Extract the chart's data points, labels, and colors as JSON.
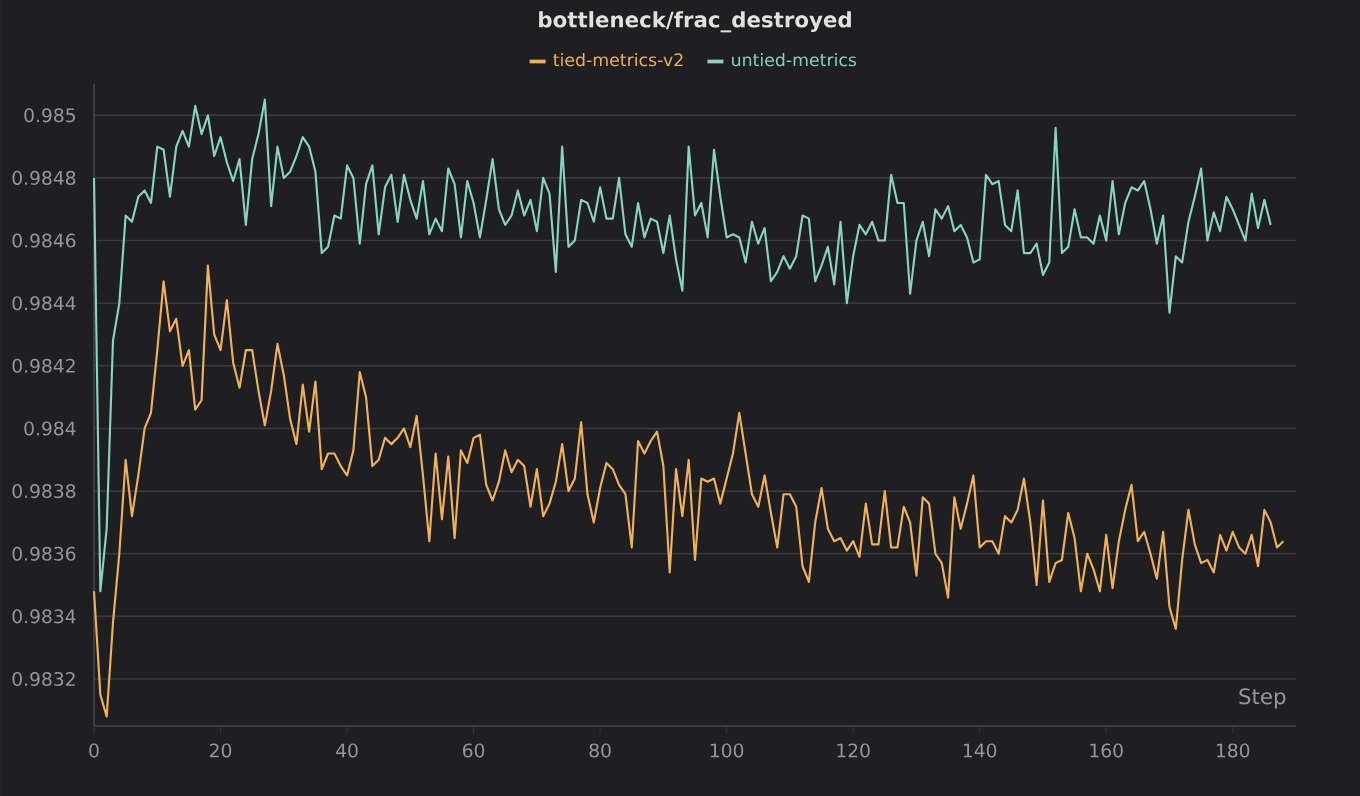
{
  "chart_data": {
    "type": "line",
    "title": "bottleneck/frac_destroyed",
    "xlabel": "Step",
    "xlim": [
      0,
      190
    ],
    "ylim": [
      0.98305,
      0.9851
    ],
    "xticks": [
      0,
      20,
      40,
      60,
      80,
      100,
      120,
      140,
      160,
      180
    ],
    "yticks": [
      0.9832,
      0.9834,
      0.9836,
      0.9838,
      0.984,
      0.9842,
      0.9844,
      0.9846,
      0.9848,
      0.985
    ],
    "grid": "y",
    "legend": "top",
    "series": [
      {
        "name": "tied-metrics-v2",
        "color": "#f0b15c",
        "x": [
          0,
          1,
          2,
          3,
          4,
          5,
          6,
          7,
          8,
          9,
          10,
          11,
          12,
          13,
          14,
          15,
          16,
          17,
          18,
          19,
          20,
          21,
          22,
          23,
          24,
          25,
          26,
          27,
          28,
          29,
          30,
          31,
          32,
          33,
          34,
          35,
          36,
          37,
          38,
          39,
          40,
          41,
          42,
          43,
          44,
          45,
          46,
          47,
          48,
          49,
          50,
          51,
          52,
          53,
          54,
          55,
          56,
          57,
          58,
          59,
          60,
          61,
          62,
          63,
          64,
          65,
          66,
          67,
          68,
          69,
          70,
          71,
          72,
          73,
          74,
          75,
          76,
          77,
          78,
          79,
          80,
          81,
          82,
          83,
          84,
          85,
          86,
          87,
          88,
          89,
          90,
          91,
          92,
          93,
          94,
          95,
          96,
          97,
          98,
          99,
          100,
          101,
          102,
          103,
          104,
          105,
          106,
          107,
          108,
          109,
          110,
          111,
          112,
          113,
          114,
          115,
          116,
          117,
          118,
          119,
          120,
          121,
          122,
          123,
          124,
          125,
          126,
          127,
          128,
          129,
          130,
          131,
          132,
          133,
          134,
          135,
          136,
          137,
          138,
          139,
          140,
          141,
          142,
          143,
          144,
          145,
          146,
          147,
          148,
          149,
          150,
          151,
          152,
          153,
          154,
          155,
          156,
          157,
          158,
          159,
          160,
          161,
          162,
          163,
          164,
          165,
          166,
          167,
          168,
          169,
          170,
          171,
          172,
          173,
          174,
          175,
          176,
          177,
          178,
          179,
          180,
          181,
          182,
          183,
          184,
          185,
          186,
          187,
          188
        ],
        "values": [
          0.98348,
          0.98315,
          0.98308,
          0.98338,
          0.9836,
          0.9839,
          0.98372,
          0.98385,
          0.984,
          0.98405,
          0.98425,
          0.98447,
          0.98431,
          0.98435,
          0.9842,
          0.98425,
          0.98406,
          0.98409,
          0.98452,
          0.9843,
          0.98425,
          0.98441,
          0.98421,
          0.98413,
          0.98425,
          0.98425,
          0.98412,
          0.98401,
          0.98412,
          0.98427,
          0.98417,
          0.98403,
          0.98395,
          0.98414,
          0.98399,
          0.98415,
          0.98387,
          0.98392,
          0.98392,
          0.98388,
          0.98385,
          0.98393,
          0.98418,
          0.9841,
          0.98388,
          0.9839,
          0.98397,
          0.98395,
          0.98397,
          0.984,
          0.98394,
          0.98404,
          0.98385,
          0.98364,
          0.98392,
          0.98371,
          0.98391,
          0.98365,
          0.98393,
          0.98389,
          0.98397,
          0.98398,
          0.98382,
          0.98377,
          0.98383,
          0.98393,
          0.98386,
          0.9839,
          0.98388,
          0.98375,
          0.98387,
          0.98372,
          0.98376,
          0.98383,
          0.98395,
          0.9838,
          0.98384,
          0.98402,
          0.98379,
          0.9837,
          0.98381,
          0.98389,
          0.98387,
          0.98382,
          0.98379,
          0.98362,
          0.98396,
          0.98392,
          0.98396,
          0.98399,
          0.98388,
          0.98354,
          0.98387,
          0.98372,
          0.9839,
          0.98358,
          0.98384,
          0.98383,
          0.98384,
          0.98376,
          0.98384,
          0.98392,
          0.98405,
          0.98392,
          0.98379,
          0.98375,
          0.98385,
          0.98373,
          0.98362,
          0.98379,
          0.98379,
          0.98375,
          0.98356,
          0.98351,
          0.9837,
          0.98381,
          0.98368,
          0.98364,
          0.98365,
          0.98361,
          0.98364,
          0.98359,
          0.98376,
          0.98363,
          0.98363,
          0.9838,
          0.98362,
          0.98362,
          0.98375,
          0.9837,
          0.98353,
          0.98378,
          0.98376,
          0.9836,
          0.98357,
          0.98346,
          0.98378,
          0.98368,
          0.98376,
          0.98385,
          0.98362,
          0.98364,
          0.98364,
          0.9836,
          0.98372,
          0.9837,
          0.98374,
          0.98384,
          0.9837,
          0.9835,
          0.98377,
          0.98351,
          0.98357,
          0.98358,
          0.98373,
          0.98365,
          0.98348,
          0.9836,
          0.98355,
          0.98348,
          0.98366,
          0.98349,
          0.98364,
          0.98374,
          0.98382,
          0.98364,
          0.98367,
          0.9836,
          0.98352,
          0.98367,
          0.98343,
          0.98336,
          0.98358,
          0.98374,
          0.98363,
          0.98357,
          0.98358,
          0.98354,
          0.98366,
          0.98361,
          0.98367,
          0.98362,
          0.9836,
          0.98366,
          0.98356,
          0.98374,
          0.9837,
          0.98362,
          0.98364
        ]
      },
      {
        "name": "untied-metrics",
        "color": "#88d3c2",
        "x": [
          0,
          1,
          2,
          3,
          4,
          5,
          6,
          7,
          8,
          9,
          10,
          11,
          12,
          13,
          14,
          15,
          16,
          17,
          18,
          19,
          20,
          21,
          22,
          23,
          24,
          25,
          26,
          27,
          28,
          29,
          30,
          31,
          32,
          33,
          34,
          35,
          36,
          37,
          38,
          39,
          40,
          41,
          42,
          43,
          44,
          45,
          46,
          47,
          48,
          49,
          50,
          51,
          52,
          53,
          54,
          55,
          56,
          57,
          58,
          59,
          60,
          61,
          62,
          63,
          64,
          65,
          66,
          67,
          68,
          69,
          70,
          71,
          72,
          73,
          74,
          75,
          76,
          77,
          78,
          79,
          80,
          81,
          82,
          83,
          84,
          85,
          86,
          87,
          88,
          89,
          90,
          91,
          92,
          93,
          94,
          95,
          96,
          97,
          98,
          99,
          100,
          101,
          102,
          103,
          104,
          105,
          106,
          107,
          108,
          109,
          110,
          111,
          112,
          113,
          114,
          115,
          116,
          117,
          118,
          119,
          120,
          121,
          122,
          123,
          124,
          125,
          126,
          127,
          128,
          129,
          130,
          131,
          132,
          133,
          134,
          135,
          136,
          137,
          138,
          139,
          140,
          141,
          142,
          143,
          144,
          145,
          146,
          147,
          148,
          149,
          150,
          151,
          152,
          153,
          154,
          155,
          156,
          157,
          158,
          159,
          160,
          161,
          162,
          163,
          164,
          165,
          166,
          167,
          168,
          169,
          170,
          171,
          172,
          173,
          174,
          175,
          176,
          177,
          178,
          179,
          180,
          181,
          182,
          183,
          184,
          185,
          186
        ],
        "values": [
          0.9848,
          0.98348,
          0.98368,
          0.98428,
          0.9844,
          0.98468,
          0.98466,
          0.98474,
          0.98476,
          0.98472,
          0.9849,
          0.98489,
          0.98474,
          0.9849,
          0.98495,
          0.9849,
          0.98503,
          0.98494,
          0.985,
          0.98487,
          0.98493,
          0.98485,
          0.98479,
          0.98486,
          0.98465,
          0.98486,
          0.98494,
          0.98505,
          0.98471,
          0.9849,
          0.9848,
          0.98482,
          0.98487,
          0.98493,
          0.9849,
          0.98482,
          0.98456,
          0.98458,
          0.98468,
          0.98467,
          0.98484,
          0.9848,
          0.98459,
          0.98478,
          0.98484,
          0.98462,
          0.98477,
          0.98481,
          0.98466,
          0.98481,
          0.98473,
          0.98467,
          0.98479,
          0.98462,
          0.98467,
          0.98463,
          0.98483,
          0.98478,
          0.98461,
          0.98479,
          0.98472,
          0.98461,
          0.98473,
          0.98486,
          0.9847,
          0.98465,
          0.98468,
          0.98476,
          0.98468,
          0.98473,
          0.98463,
          0.9848,
          0.98475,
          0.9845,
          0.9849,
          0.98458,
          0.9846,
          0.98473,
          0.98472,
          0.98466,
          0.98477,
          0.98467,
          0.98467,
          0.9848,
          0.98462,
          0.98458,
          0.98472,
          0.98461,
          0.98467,
          0.98466,
          0.98456,
          0.98468,
          0.98454,
          0.98444,
          0.9849,
          0.98468,
          0.98472,
          0.98461,
          0.98489,
          0.98474,
          0.98461,
          0.98462,
          0.98461,
          0.98453,
          0.98466,
          0.98459,
          0.98464,
          0.98447,
          0.9845,
          0.98455,
          0.98451,
          0.98455,
          0.98468,
          0.98467,
          0.98447,
          0.98452,
          0.98458,
          0.98446,
          0.98466,
          0.9844,
          0.98455,
          0.98465,
          0.98462,
          0.98466,
          0.9846,
          0.9846,
          0.98481,
          0.98472,
          0.98472,
          0.98443,
          0.9846,
          0.98466,
          0.98455,
          0.9847,
          0.98467,
          0.98471,
          0.98463,
          0.98465,
          0.98461,
          0.98453,
          0.98454,
          0.98481,
          0.98478,
          0.98479,
          0.98465,
          0.98463,
          0.98476,
          0.98456,
          0.98456,
          0.98459,
          0.98449,
          0.98453,
          0.98496,
          0.98456,
          0.98458,
          0.9847,
          0.98461,
          0.98461,
          0.98459,
          0.98468,
          0.9846,
          0.98479,
          0.98462,
          0.98472,
          0.98477,
          0.98476,
          0.98479,
          0.9847,
          0.98459,
          0.98468,
          0.98437,
          0.98455,
          0.98453,
          0.98466,
          0.98474,
          0.98483,
          0.9846,
          0.98469,
          0.98463,
          0.98474,
          0.9847,
          0.98465,
          0.9846,
          0.98475,
          0.98464,
          0.98473,
          0.98465
        ]
      }
    ]
  }
}
